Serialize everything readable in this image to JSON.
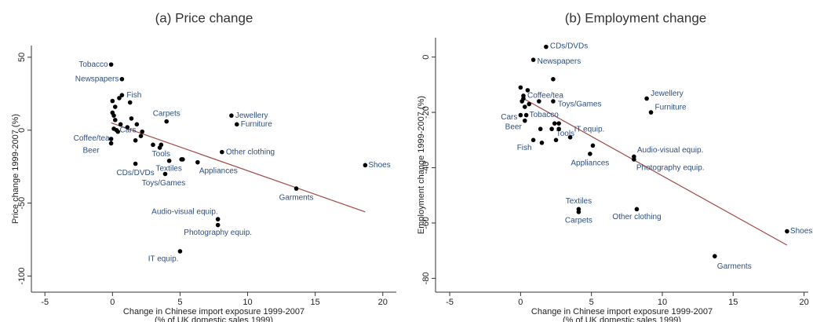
{
  "chart_data": [
    {
      "type": "scatter",
      "title": "(a) Price change",
      "x_label": [
        "Change in Chinese import exposure 1999-2007",
        "(% of UK domestic sales 1999)"
      ],
      "y_label": "Price change 1999-2007 (%)",
      "labels": [
        "Tobacco",
        "Newspapers",
        "Fish",
        "Carpets",
        "Jewellery",
        "Furniture",
        "Coffee/tea",
        "Beer",
        "Cars",
        "Other clothing",
        "Shoes",
        "Garments",
        "Appliances",
        "Textiles",
        "Tools",
        "CDs/DVDs",
        "Toys/Games",
        "Audio-visual equip.",
        "Photography equip.",
        "IT equip.",
        null,
        null,
        null,
        null,
        null,
        null,
        null,
        null,
        null,
        null,
        null,
        null,
        null,
        null,
        null,
        null,
        null,
        null,
        null,
        null
      ],
      "x": [
        -0.1,
        0.7,
        0.7,
        4.0,
        8.8,
        9.2,
        -0.1,
        -0.1,
        0.3,
        8.1,
        18.7,
        13.6,
        6.3,
        5.2,
        3.6,
        1.7,
        3.9,
        7.8,
        7.8,
        5.0,
        0,
        0.2,
        0.5,
        1.3,
        0,
        0.1,
        0.2,
        0.6,
        1.1,
        1.4,
        1.8,
        2.2,
        2.1,
        1.7,
        3.0,
        3.5,
        0.4,
        0.1,
        4.2,
        5.1
      ],
      "y": [
        45,
        35,
        24,
        6,
        10,
        4,
        -9,
        -6,
        0,
        -15,
        -24,
        -40,
        -22,
        -20,
        -10,
        -23,
        -30,
        -61,
        -65,
        -83,
        20,
        16,
        22,
        19,
        12,
        10,
        7,
        4,
        2,
        8,
        4,
        -1,
        -4,
        -7,
        -10,
        -12,
        -1,
        1,
        -21,
        -20
      ],
      "color": "#000000",
      "label_color": "#2d4f80",
      "fit": {
        "x": [
          -0.1,
          18.7
        ],
        "y": [
          5,
          -56
        ],
        "color": "#a14a45"
      },
      "xlim": [
        -6,
        21
      ],
      "ylim": [
        -111,
        58
      ],
      "xticks": [
        -5,
        0,
        5,
        10,
        15,
        20
      ],
      "yticks": [
        -100,
        -50,
        0,
        50
      ]
    },
    {
      "type": "scatter",
      "title": "(b) Employment change",
      "x_label": [
        "Change in Chinese import exposure 1999-2007",
        "(% of UK domestic sales 1999)"
      ],
      "y_label": "Employment change 1999-2007 (%)",
      "labels": [
        "CDs/DVDs",
        "Newspapers",
        "Coffee/tea",
        "Toys/Games",
        "Cars",
        "Beer",
        "Tobacco",
        "IT equip.",
        "Tools",
        "Fish",
        "Jewellery",
        "Furniture",
        "Audio-visual equip.",
        "Photography equip.",
        "Appliances",
        "Textiles",
        "Carpets",
        "Other clothing",
        "Shoes",
        "Garments",
        null,
        null,
        null,
        null,
        null,
        null,
        null,
        null,
        null,
        null,
        null,
        null,
        null,
        null,
        null
      ],
      "x": [
        1.8,
        0.9,
        0.2,
        2.3,
        0.0,
        0.3,
        0.4,
        3.5,
        2.4,
        0.9,
        8.9,
        9.2,
        8.0,
        8.0,
        4.9,
        4.1,
        4.1,
        8.2,
        18.8,
        13.7,
        0,
        0.2,
        0.5,
        0.6,
        1.3,
        2.3,
        1.4,
        2.2,
        2.7,
        2.7,
        5.1,
        2.5,
        1.5,
        0.1,
        0.3
      ],
      "y": [
        3.7,
        -1,
        -14,
        -16,
        -21,
        -23,
        -21,
        -29,
        -24,
        -30,
        -15,
        -20,
        -36,
        -37,
        -35,
        -55,
        -56,
        -55,
        -63,
        -72,
        -11,
        -15,
        -12,
        -17,
        -16,
        -8,
        -26,
        -26,
        -26,
        -24,
        -32,
        -30,
        -31,
        -16,
        -18
      ],
      "color": "#000000",
      "label_color": "#2d4f80",
      "fit": {
        "x": [
          0.2,
          18.8
        ],
        "y": [
          -15,
          -68
        ],
        "color": "#a14a45"
      },
      "xlim": [
        -6,
        20.3
      ],
      "ylim": [
        -85,
        7
      ],
      "xticks": [
        -5,
        0,
        5,
        10,
        15,
        20
      ],
      "yticks": [
        -80,
        -60,
        -40,
        -20,
        0
      ]
    }
  ]
}
